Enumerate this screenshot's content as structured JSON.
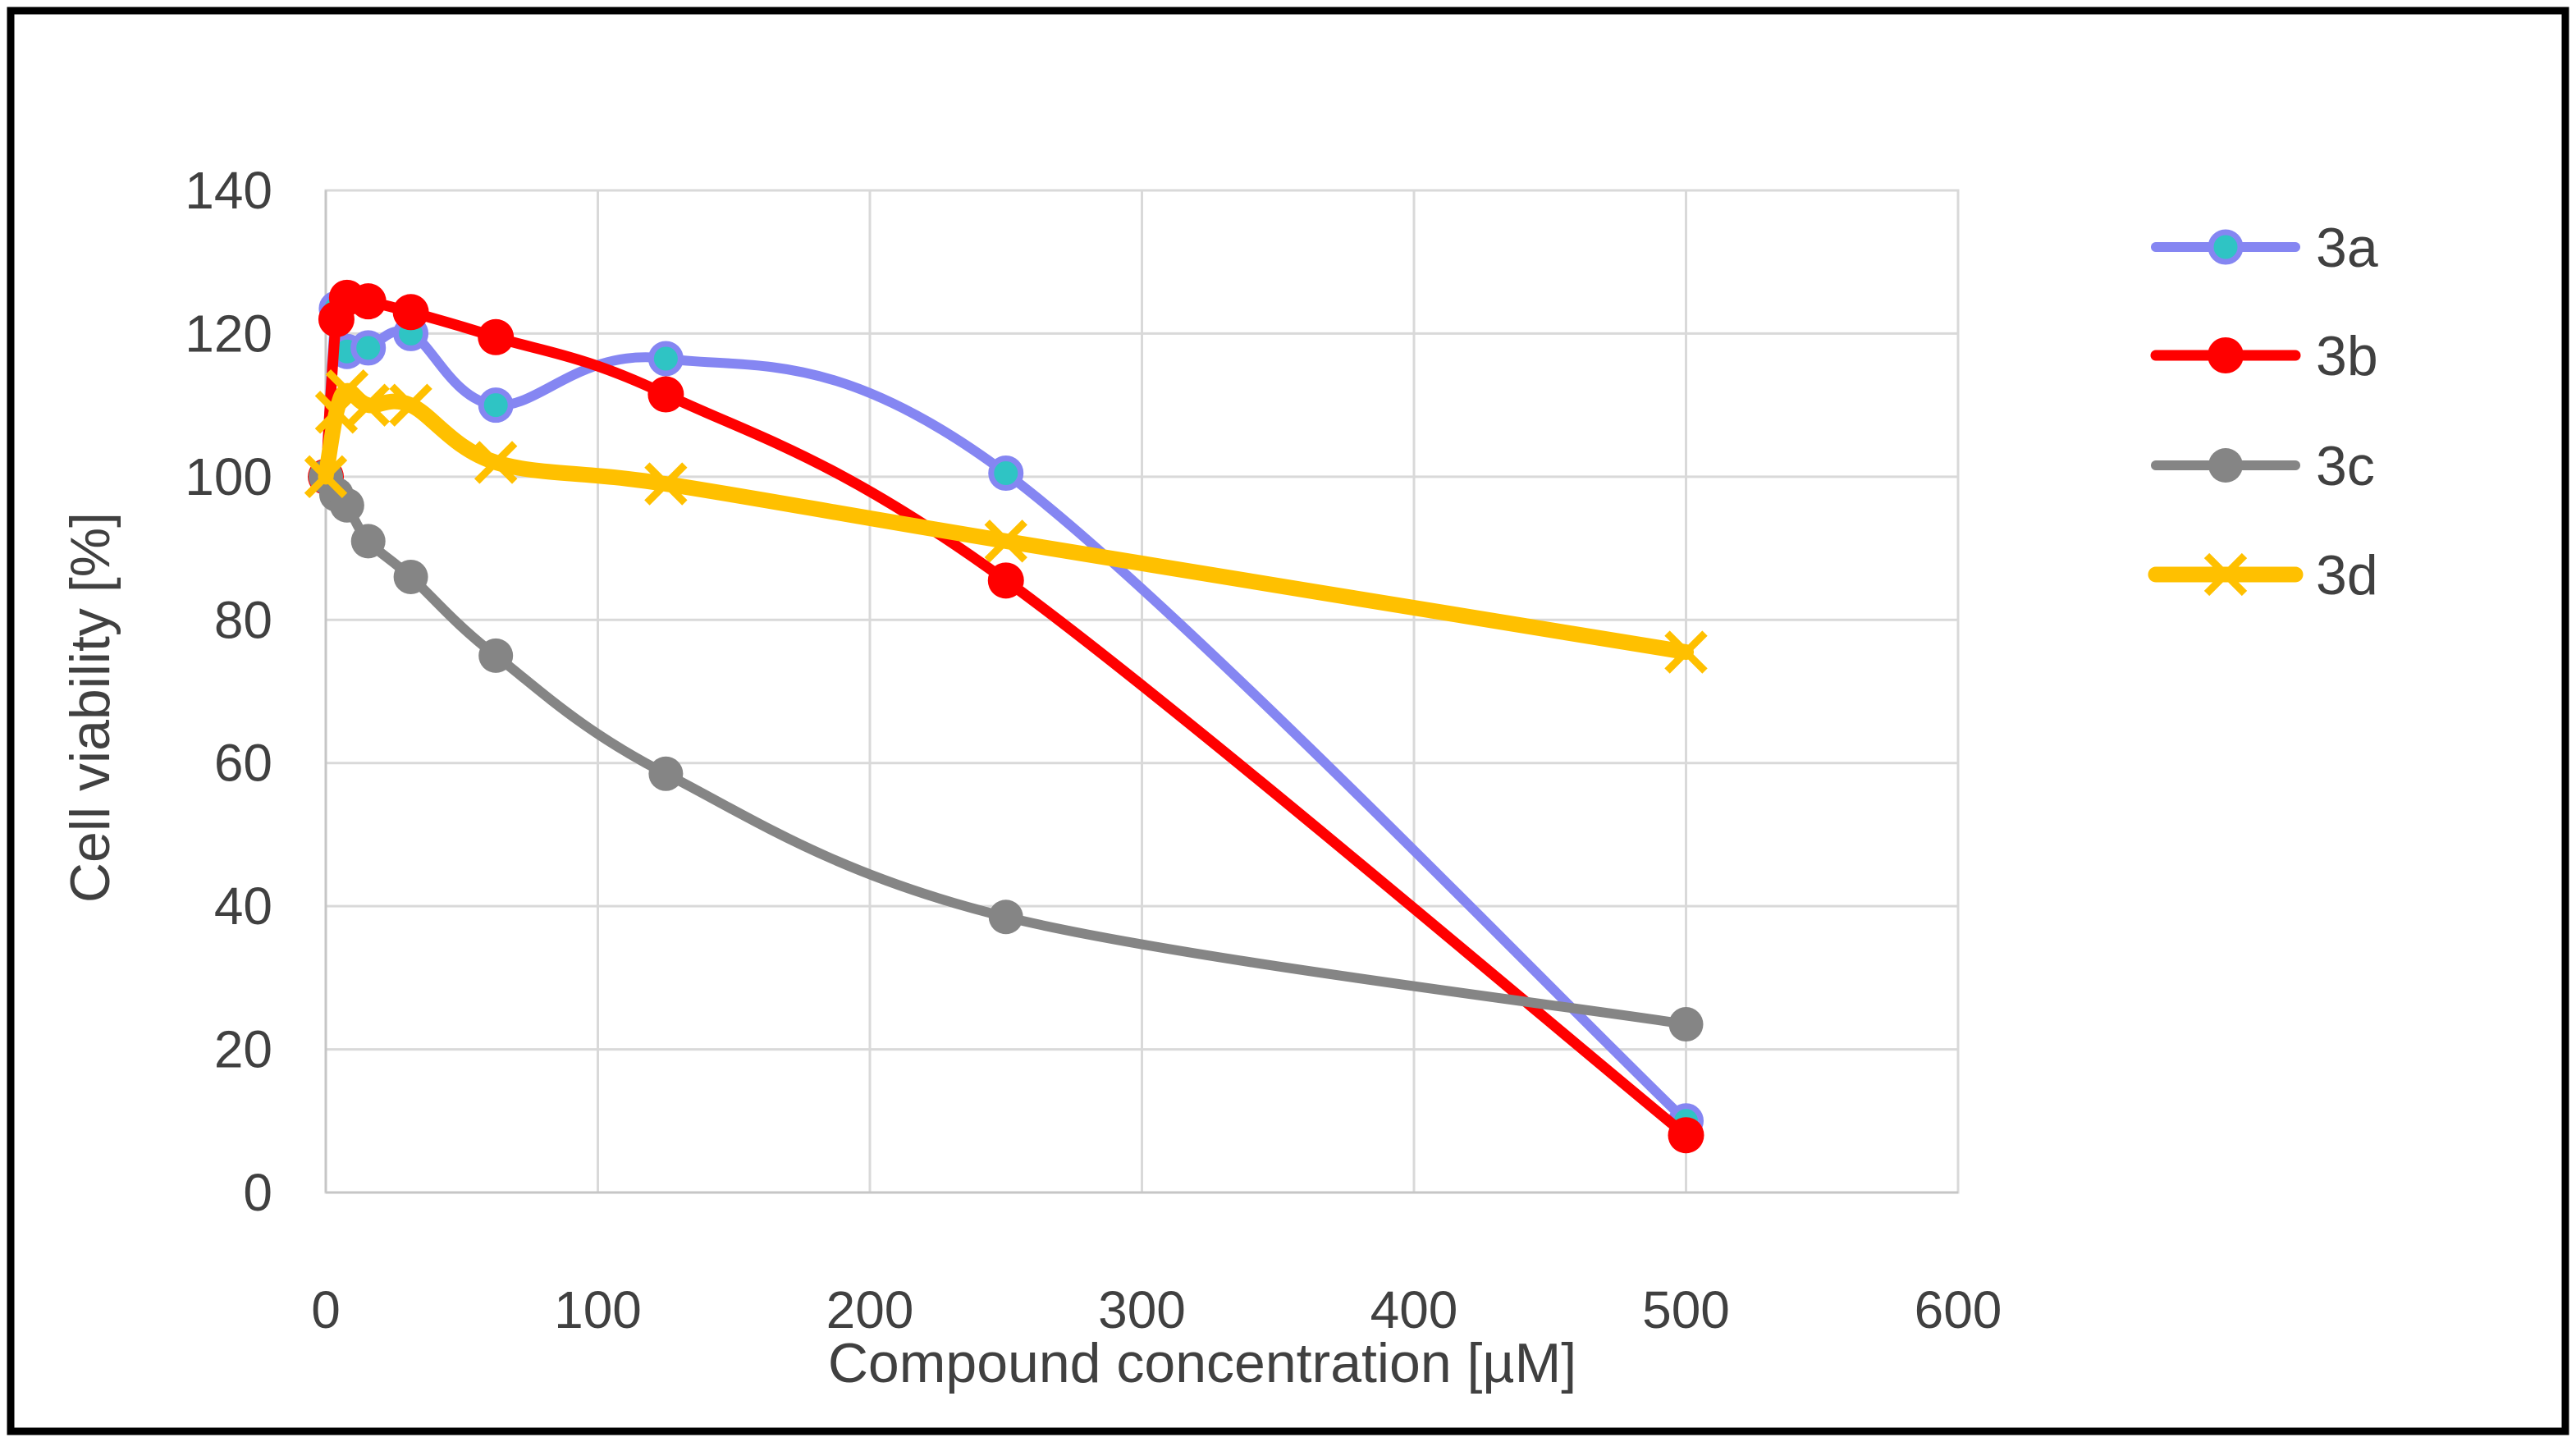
{
  "figure": {
    "background_color": "#FFFFFF",
    "outer_border_color": "#000000",
    "gridline_color": "#D9D9D9",
    "axis_line_color": "#C6C6C6",
    "text_color": "#404040"
  },
  "chart_data": {
    "type": "line",
    "title": "",
    "xlabel": "Compound concentration [µM]",
    "ylabel": "Cell viability [%]",
    "xlim": [
      0,
      600
    ],
    "ylim": [
      0,
      140
    ],
    "x_ticks": [
      0,
      100,
      200,
      300,
      400,
      500,
      600
    ],
    "y_ticks": [
      0,
      20,
      40,
      60,
      80,
      100,
      120,
      140
    ],
    "grid": true,
    "legend_position": "right",
    "x": [
      0,
      3.9,
      7.8,
      15.6,
      31.25,
      62.5,
      125,
      250,
      500
    ],
    "series": [
      {
        "name": "3a",
        "values": [
          100,
          123.5,
          117.5,
          118,
          120,
          110,
          116.5,
          100.5,
          10
        ],
        "line_color": "#8586F2",
        "line_width": 12,
        "marker": "circle",
        "marker_fill": "#2FC4C4",
        "marker_edge": "#8586F2",
        "marker_edge_width": 7,
        "marker_radius": 18
      },
      {
        "name": "3b",
        "values": [
          100,
          122,
          125,
          124.5,
          123,
          119.5,
          111.5,
          85.5,
          8
        ],
        "line_color": "#FF0000",
        "line_width": 13,
        "marker": "circle",
        "marker_fill": "#FF0000",
        "marker_edge": "#FF0000",
        "marker_edge_width": 0,
        "marker_radius": 22
      },
      {
        "name": "3c",
        "values": [
          100,
          97.5,
          96,
          91,
          86,
          75,
          58.5,
          38.5,
          23.5
        ],
        "line_color": "#858585",
        "line_width": 12,
        "marker": "circle",
        "marker_fill": "#858585",
        "marker_edge": "#858585",
        "marker_edge_width": 0,
        "marker_radius": 21
      },
      {
        "name": "3d",
        "values": [
          100,
          109,
          112,
          110,
          110,
          102,
          99,
          91,
          75.5
        ],
        "line_color": "#FFC000",
        "line_width": 19,
        "marker": "x",
        "marker_fill": "#FFC000",
        "marker_edge": "#FFC000",
        "marker_edge_width": 9,
        "marker_radius": 23
      }
    ]
  }
}
